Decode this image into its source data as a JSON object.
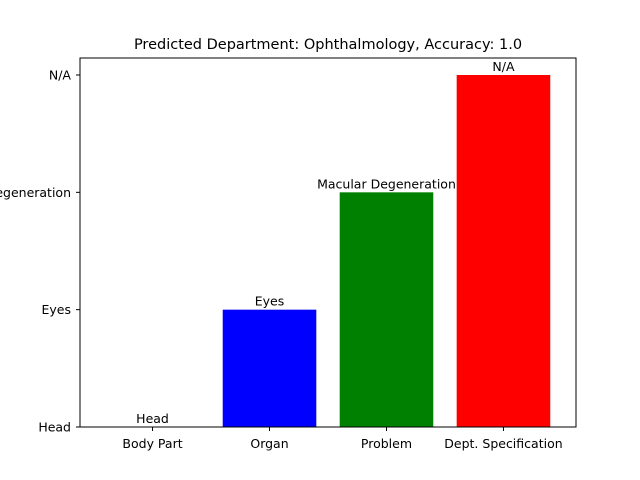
{
  "chart_data": {
    "type": "bar",
    "title": "Predicted Department: Ophthalmology, Accuracy: 1.0",
    "xlabel": "",
    "ylabel": "",
    "categories": [
      "Body Part",
      "Organ",
      "Problem",
      "Dept. Specification"
    ],
    "y_categories": [
      "Head",
      "Eyes",
      "Macular Degeneration",
      "N/A"
    ],
    "y_tick_labels": [
      "Head",
      "Eyes",
      "egeneration",
      "N/A"
    ],
    "values": [
      0,
      1,
      2,
      3
    ],
    "data_labels": [
      "Head",
      "Eyes",
      "Macular Degeneration",
      "N/A"
    ],
    "colors": [
      "#0000ff",
      "#0000ff",
      "#008000",
      "#ff0000"
    ],
    "ylim": [
      0,
      3
    ],
    "grid": false
  }
}
